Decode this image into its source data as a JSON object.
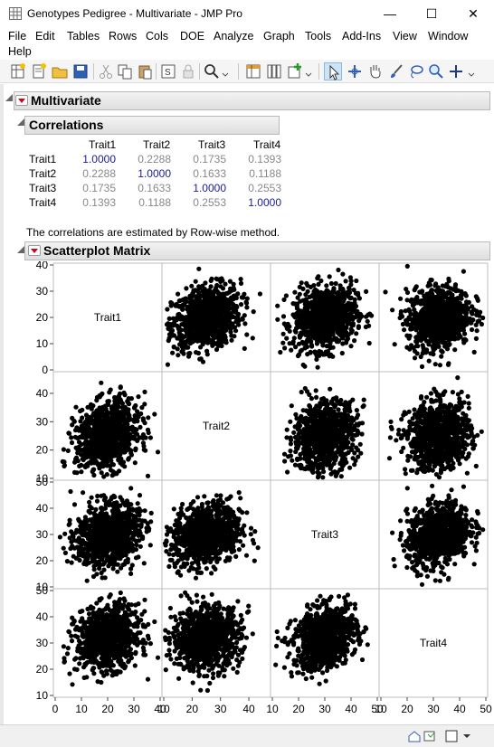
{
  "window": {
    "title": "Genotypes Pedigree - Multivariate - JMP Pro"
  },
  "menu": [
    "File",
    "Edit",
    "Tables",
    "Rows",
    "Cols",
    "DOE",
    "Analyze",
    "Graph",
    "Tools",
    "Add-Ins",
    "View",
    "Window",
    "Help"
  ],
  "report": {
    "multivariate_title": "Multivariate",
    "correlations_title": "Correlations",
    "scatter_title": "Scatterplot Matrix",
    "note": "The correlations are estimated by Row-wise method."
  },
  "correlations": {
    "columns": [
      "Trait1",
      "Trait2",
      "Trait3",
      "Trait4"
    ],
    "rows": [
      {
        "label": "Trait1",
        "values": [
          "1.0000",
          "0.2288",
          "0.1735",
          "0.1393"
        ]
      },
      {
        "label": "Trait2",
        "values": [
          "0.2288",
          "1.0000",
          "0.1633",
          "0.1188"
        ]
      },
      {
        "label": "Trait3",
        "values": [
          "0.1735",
          "0.1633",
          "1.0000",
          "0.2553"
        ]
      },
      {
        "label": "Trait4",
        "values": [
          "0.1393",
          "0.1188",
          "0.2553",
          "1.0000"
        ]
      }
    ]
  },
  "chart_data": {
    "type": "scatter",
    "matrix": true,
    "variables": [
      {
        "name": "Trait1",
        "range": [
          0,
          40
        ],
        "ticks": [
          0,
          10,
          20,
          30,
          40
        ],
        "mean": 20,
        "sd": 6
      },
      {
        "name": "Trait2",
        "range": [
          10,
          47
        ],
        "ticks": [
          10,
          20,
          30,
          40
        ],
        "mean": 25,
        "sd": 6
      },
      {
        "name": "Trait3",
        "range": [
          10,
          50
        ],
        "ticks": [
          10,
          20,
          30,
          40,
          50
        ],
        "mean": 30,
        "sd": 6
      },
      {
        "name": "Trait4",
        "range": [
          10,
          50
        ],
        "ticks": [
          10,
          20,
          30,
          40,
          50
        ],
        "mean": 32,
        "sd": 6
      }
    ],
    "correlations": [
      [
        1,
        0.2288,
        0.1735,
        0.1393
      ],
      [
        0.2288,
        1,
        0.1633,
        0.1188
      ],
      [
        0.1735,
        0.1633,
        1,
        0.2553
      ],
      [
        0.1393,
        0.1188,
        0.2553,
        1
      ]
    ],
    "grid": true,
    "point_color": "#000000"
  }
}
